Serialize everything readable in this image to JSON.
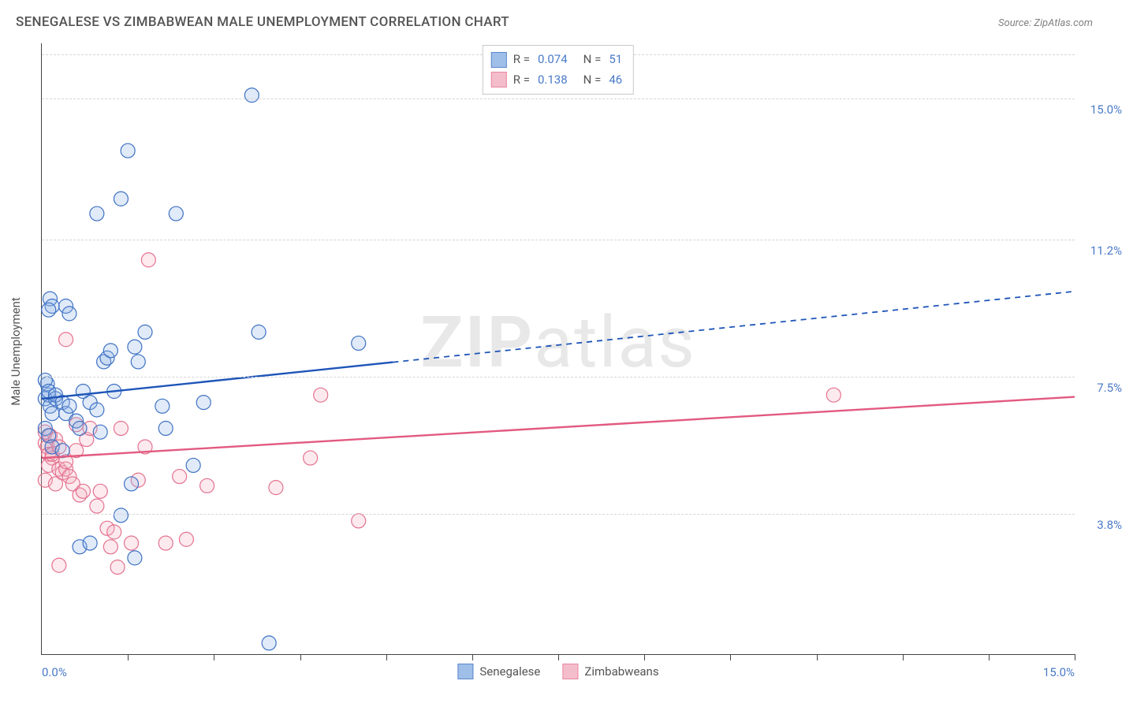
{
  "title": "SENEGALESE VS ZIMBABWEAN MALE UNEMPLOYMENT CORRELATION CHART",
  "source": "Source: ZipAtlas.com",
  "watermark_strong": "ZIP",
  "watermark_rest": "atlas",
  "chart": {
    "type": "scatter",
    "y_axis_label": "Male Unemployment",
    "x_min": 0.0,
    "x_max": 15.0,
    "y_min": 0.0,
    "y_max": 16.5,
    "x_left_label": "0.0%",
    "x_right_label": "15.0%",
    "x_tick_positions": [
      1.25,
      2.5,
      3.75,
      5.0,
      6.25,
      7.5,
      8.75,
      10.0,
      11.25,
      12.5,
      13.75,
      15.0
    ],
    "y_grid": [
      {
        "value": 3.8,
        "label": "3.8%"
      },
      {
        "value": 7.5,
        "label": "7.5%"
      },
      {
        "value": 11.2,
        "label": "11.2%"
      },
      {
        "value": 15.0,
        "label": "15.0%"
      },
      {
        "value": 16.2,
        "label": ""
      }
    ],
    "background_color": "#ffffff",
    "grid_color": "#d5d5d5",
    "axis_color": "#444444",
    "tick_label_color": "#4a7ac7",
    "marker_radius": 9,
    "marker_stroke_width": 1.2,
    "marker_fill_opacity": 0.28,
    "trend_line_width": 2.4,
    "trend_dash": "7 6",
    "series": [
      {
        "key": "senegalese",
        "label": "Senegalese",
        "color_fill": "#8fb5e5",
        "color_stroke": "#3f72c4",
        "line_color": "#1e55b8",
        "R": "0.074",
        "N": "51",
        "trend": {
          "x1": 0.0,
          "y1": 6.9,
          "x2": 15.0,
          "y2": 9.8,
          "solid_until_x": 5.1
        },
        "points": [
          [
            0.05,
            6.9
          ],
          [
            0.1,
            7.0
          ],
          [
            0.08,
            7.3
          ],
          [
            0.12,
            6.7
          ],
          [
            0.15,
            6.5
          ],
          [
            0.05,
            7.4
          ],
          [
            0.1,
            7.1
          ],
          [
            0.2,
            6.9
          ],
          [
            0.12,
            9.6
          ],
          [
            0.15,
            9.4
          ],
          [
            0.1,
            9.3
          ],
          [
            0.35,
            9.4
          ],
          [
            0.4,
            9.2
          ],
          [
            0.2,
            7.0
          ],
          [
            0.3,
            6.8
          ],
          [
            0.05,
            6.1
          ],
          [
            0.1,
            5.9
          ],
          [
            0.15,
            5.6
          ],
          [
            0.3,
            5.5
          ],
          [
            0.35,
            6.5
          ],
          [
            0.4,
            6.7
          ],
          [
            0.5,
            6.3
          ],
          [
            0.55,
            6.1
          ],
          [
            0.6,
            7.1
          ],
          [
            0.7,
            6.8
          ],
          [
            0.8,
            6.6
          ],
          [
            0.85,
            6.0
          ],
          [
            0.9,
            7.9
          ],
          [
            0.95,
            8.0
          ],
          [
            1.0,
            8.2
          ],
          [
            1.05,
            7.1
          ],
          [
            1.35,
            8.3
          ],
          [
            1.4,
            7.9
          ],
          [
            1.5,
            8.7
          ],
          [
            1.75,
            6.7
          ],
          [
            1.8,
            6.1
          ],
          [
            1.95,
            11.9
          ],
          [
            0.8,
            11.9
          ],
          [
            1.15,
            12.3
          ],
          [
            1.25,
            13.6
          ],
          [
            0.55,
            2.9
          ],
          [
            0.7,
            3.0
          ],
          [
            1.15,
            3.75
          ],
          [
            1.3,
            4.6
          ],
          [
            1.35,
            2.6
          ],
          [
            2.2,
            5.1
          ],
          [
            2.35,
            6.8
          ],
          [
            3.15,
            8.7
          ],
          [
            3.05,
            15.1
          ],
          [
            3.3,
            0.3
          ],
          [
            4.6,
            8.4
          ]
        ]
      },
      {
        "key": "zimbabweans",
        "label": "Zimbabweans",
        "color_fill": "#f3b2c3",
        "color_stroke": "#e4728f",
        "line_color": "#e25a7f",
        "R": "0.138",
        "N": "46",
        "trend": {
          "x1": 0.0,
          "y1": 5.3,
          "x2": 15.0,
          "y2": 6.95,
          "solid_until_x": 15.0
        },
        "points": [
          [
            0.05,
            5.7
          ],
          [
            0.08,
            5.6
          ],
          [
            0.1,
            5.4
          ],
          [
            0.12,
            5.9
          ],
          [
            0.15,
            5.3
          ],
          [
            0.05,
            6.0
          ],
          [
            0.2,
            5.8
          ],
          [
            0.1,
            5.1
          ],
          [
            0.15,
            5.4
          ],
          [
            0.25,
            5.0
          ],
          [
            0.3,
            4.9
          ],
          [
            0.35,
            5.0
          ],
          [
            0.05,
            4.7
          ],
          [
            0.2,
            4.6
          ],
          [
            0.25,
            5.6
          ],
          [
            0.35,
            5.2
          ],
          [
            0.4,
            4.8
          ],
          [
            0.45,
            4.6
          ],
          [
            0.5,
            5.5
          ],
          [
            0.55,
            4.3
          ],
          [
            0.6,
            4.4
          ],
          [
            0.35,
            8.5
          ],
          [
            0.5,
            6.2
          ],
          [
            0.65,
            5.8
          ],
          [
            0.7,
            6.1
          ],
          [
            0.8,
            4.0
          ],
          [
            0.85,
            4.4
          ],
          [
            0.95,
            3.4
          ],
          [
            1.0,
            2.9
          ],
          [
            1.05,
            3.3
          ],
          [
            1.1,
            2.35
          ],
          [
            1.15,
            6.1
          ],
          [
            1.3,
            3.0
          ],
          [
            1.4,
            4.7
          ],
          [
            1.5,
            5.6
          ],
          [
            1.55,
            10.65
          ],
          [
            1.8,
            3.0
          ],
          [
            2.0,
            4.8
          ],
          [
            2.1,
            3.1
          ],
          [
            2.4,
            4.55
          ],
          [
            3.4,
            4.5
          ],
          [
            3.9,
            5.3
          ],
          [
            4.05,
            7.0
          ],
          [
            4.6,
            3.6
          ],
          [
            11.5,
            7.0
          ],
          [
            0.25,
            2.4
          ]
        ]
      }
    ]
  }
}
